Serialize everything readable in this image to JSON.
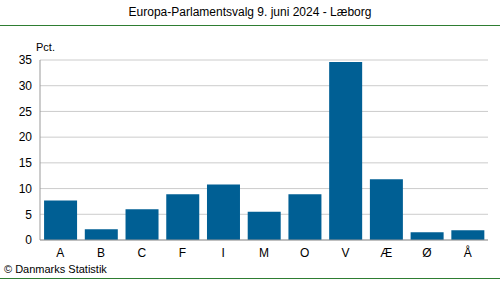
{
  "chart_data": {
    "type": "bar",
    "title": "Europa-Parlamentsvalg 9. juni 2024 - Læborg",
    "y_label": "Pct.",
    "source": "© Danmarks Statistik",
    "categories": [
      "A",
      "B",
      "C",
      "F",
      "I",
      "M",
      "O",
      "V",
      "Æ",
      "Ø",
      "Å"
    ],
    "values": [
      7.7,
      2.1,
      6.0,
      8.9,
      10.8,
      5.5,
      8.9,
      34.6,
      11.8,
      1.5,
      1.9
    ],
    "color": "#005f94",
    "ylim": [
      0,
      35
    ],
    "yticks": [
      0,
      5,
      10,
      15,
      20,
      25,
      30,
      35
    ],
    "grid": true
  }
}
